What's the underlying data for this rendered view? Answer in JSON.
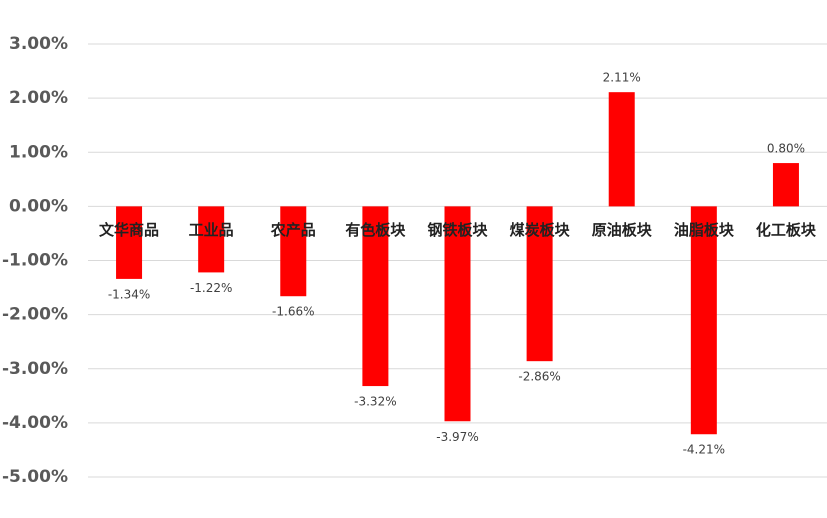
{
  "chart_data": {
    "type": "bar",
    "categories": [
      "文华商品",
      "工业品",
      "农产品",
      "有色板块",
      "钢铁板块",
      "煤炭板块",
      "原油板块",
      "油脂板块",
      "化工板块"
    ],
    "values": [
      -1.34,
      -1.22,
      -1.66,
      -3.32,
      -3.97,
      -2.86,
      2.11,
      -4.21,
      0.8
    ],
    "value_labels": [
      "-1.34%",
      "-1.22%",
      "-1.66%",
      "-3.32%",
      "-3.97%",
      "-2.86%",
      "2.11%",
      "-4.21%",
      "0.80%"
    ],
    "color": "#ff0000",
    "ylim": [
      -5,
      3
    ],
    "yticks": [
      {
        "value": 3,
        "label": "3.00%"
      },
      {
        "value": 2,
        "label": "2.00%"
      },
      {
        "value": 1,
        "label": "1.00%"
      },
      {
        "value": 0,
        "label": "0.00%"
      },
      {
        "value": -1,
        "label": "-1.00%"
      },
      {
        "value": -2,
        "label": "-2.00%"
      },
      {
        "value": -3,
        "label": "-3.00%"
      },
      {
        "value": -4,
        "label": "-4.00%"
      },
      {
        "value": -5,
        "label": "-5.00%"
      }
    ],
    "grid": true
  }
}
